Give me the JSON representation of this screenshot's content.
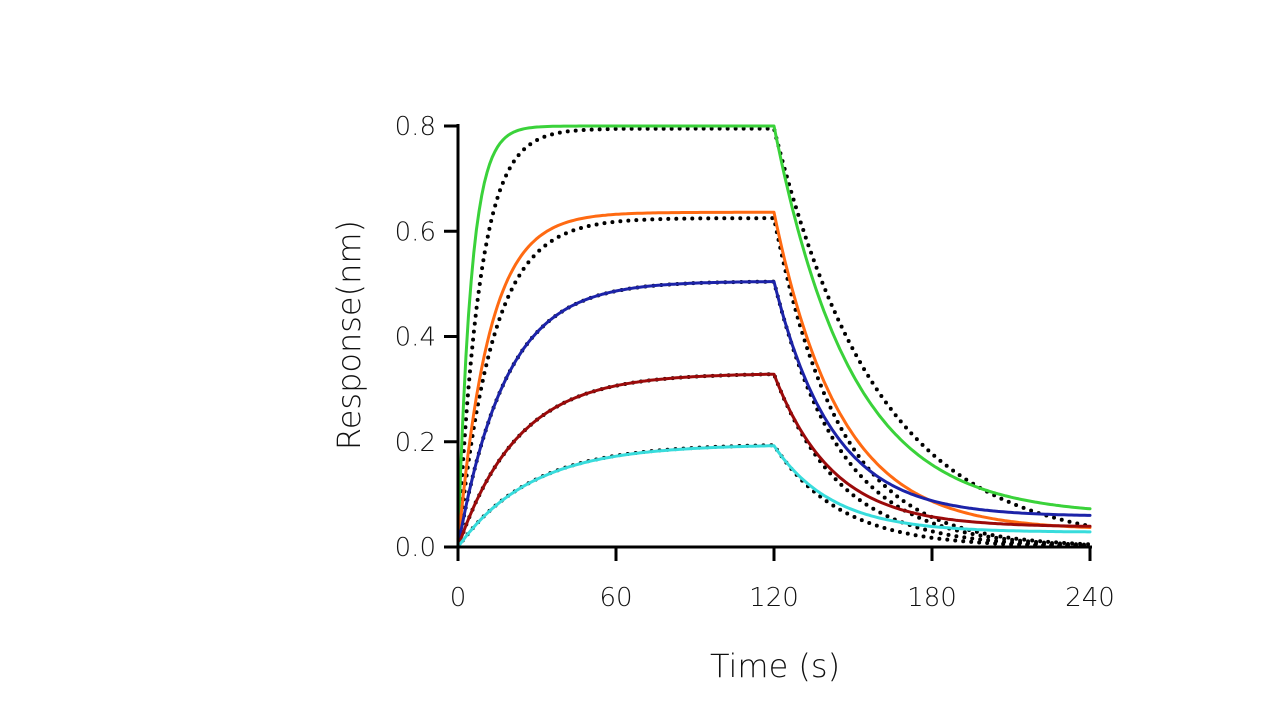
{
  "chart_data": {
    "type": "line",
    "title": "",
    "xlabel": "Time (s)",
    "ylabel": "Response(nm)",
    "xlim": [
      0,
      240
    ],
    "ylim": [
      0,
      0.8
    ],
    "xticks": [
      0,
      60,
      120,
      180,
      240
    ],
    "xtick_labels": [
      "0",
      "60",
      "120",
      "180",
      "240"
    ],
    "yticks": [
      0,
      0.2,
      0.4,
      0.6,
      0.8
    ],
    "ytick_labels": [
      "0.0",
      "0.2",
      "0.4",
      "0.6",
      "0.8"
    ],
    "association_end": 120,
    "series": [
      {
        "name": "green",
        "color": "#3ad23a",
        "kon": 0.2,
        "koff": 0.034,
        "plateau": 0.8,
        "tail_base": 0.06,
        "fit": {
          "kon": 0.12,
          "koff": 0.025,
          "plateau": 0.795
        }
      },
      {
        "name": "orange",
        "color": "#ff6a12",
        "kon": 0.085,
        "koff": 0.04,
        "plateau": 0.636,
        "tail_base": 0.032,
        "fit": {
          "kon": 0.075,
          "koff": 0.04,
          "plateau": 0.625
        }
      },
      {
        "name": "blue",
        "color": "#1c23a8",
        "kon": 0.055,
        "koff": 0.045,
        "plateau": 0.505,
        "tail_base": 0.058,
        "fit": {
          "kon": 0.055,
          "koff": 0.04,
          "plateau": 0.505
        }
      },
      {
        "name": "dark-red",
        "color": "#9b0a0a",
        "kon": 0.044,
        "koff": 0.045,
        "plateau": 0.33,
        "tail_base": 0.038,
        "fit": {
          "kon": 0.044,
          "koff": 0.04,
          "plateau": 0.33
        }
      },
      {
        "name": "cyan",
        "color": "#38dcdc",
        "kon": 0.036,
        "koff": 0.045,
        "plateau": 0.195,
        "tail_base": 0.028,
        "fit": {
          "kon": 0.036,
          "koff": 0.04,
          "plateau": 0.196
        }
      }
    ]
  }
}
